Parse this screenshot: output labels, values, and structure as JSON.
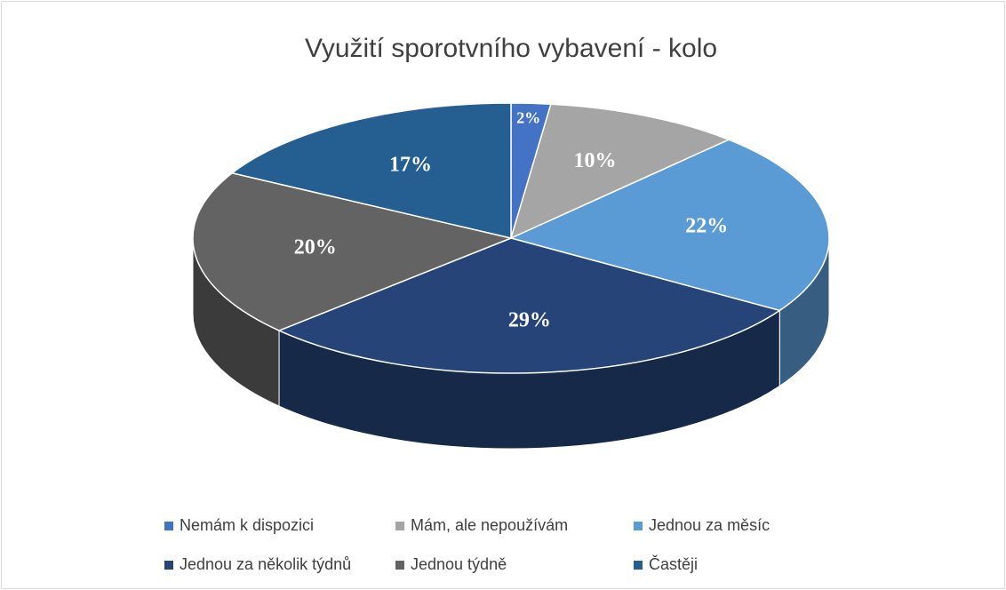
{
  "chart_data": {
    "type": "pie",
    "title": "Využití sporotvního vybavení - kolo",
    "categories": [
      "Nemám k dispozici",
      "Mám, ale nepoužívám",
      "Jednou za měsíc",
      "Jednou za několik týdnů",
      "Jednou týdně",
      "Častěji"
    ],
    "values": [
      2,
      10,
      22,
      29,
      20,
      17
    ],
    "value_labels": [
      "2%",
      "10%",
      "22%",
      "29%",
      "20%",
      "17%"
    ],
    "colors": [
      "#4472c4",
      "#a5a5a5",
      "#5b9bd5",
      "#264478",
      "#636363",
      "#255e91"
    ],
    "legend": "bottom"
  }
}
